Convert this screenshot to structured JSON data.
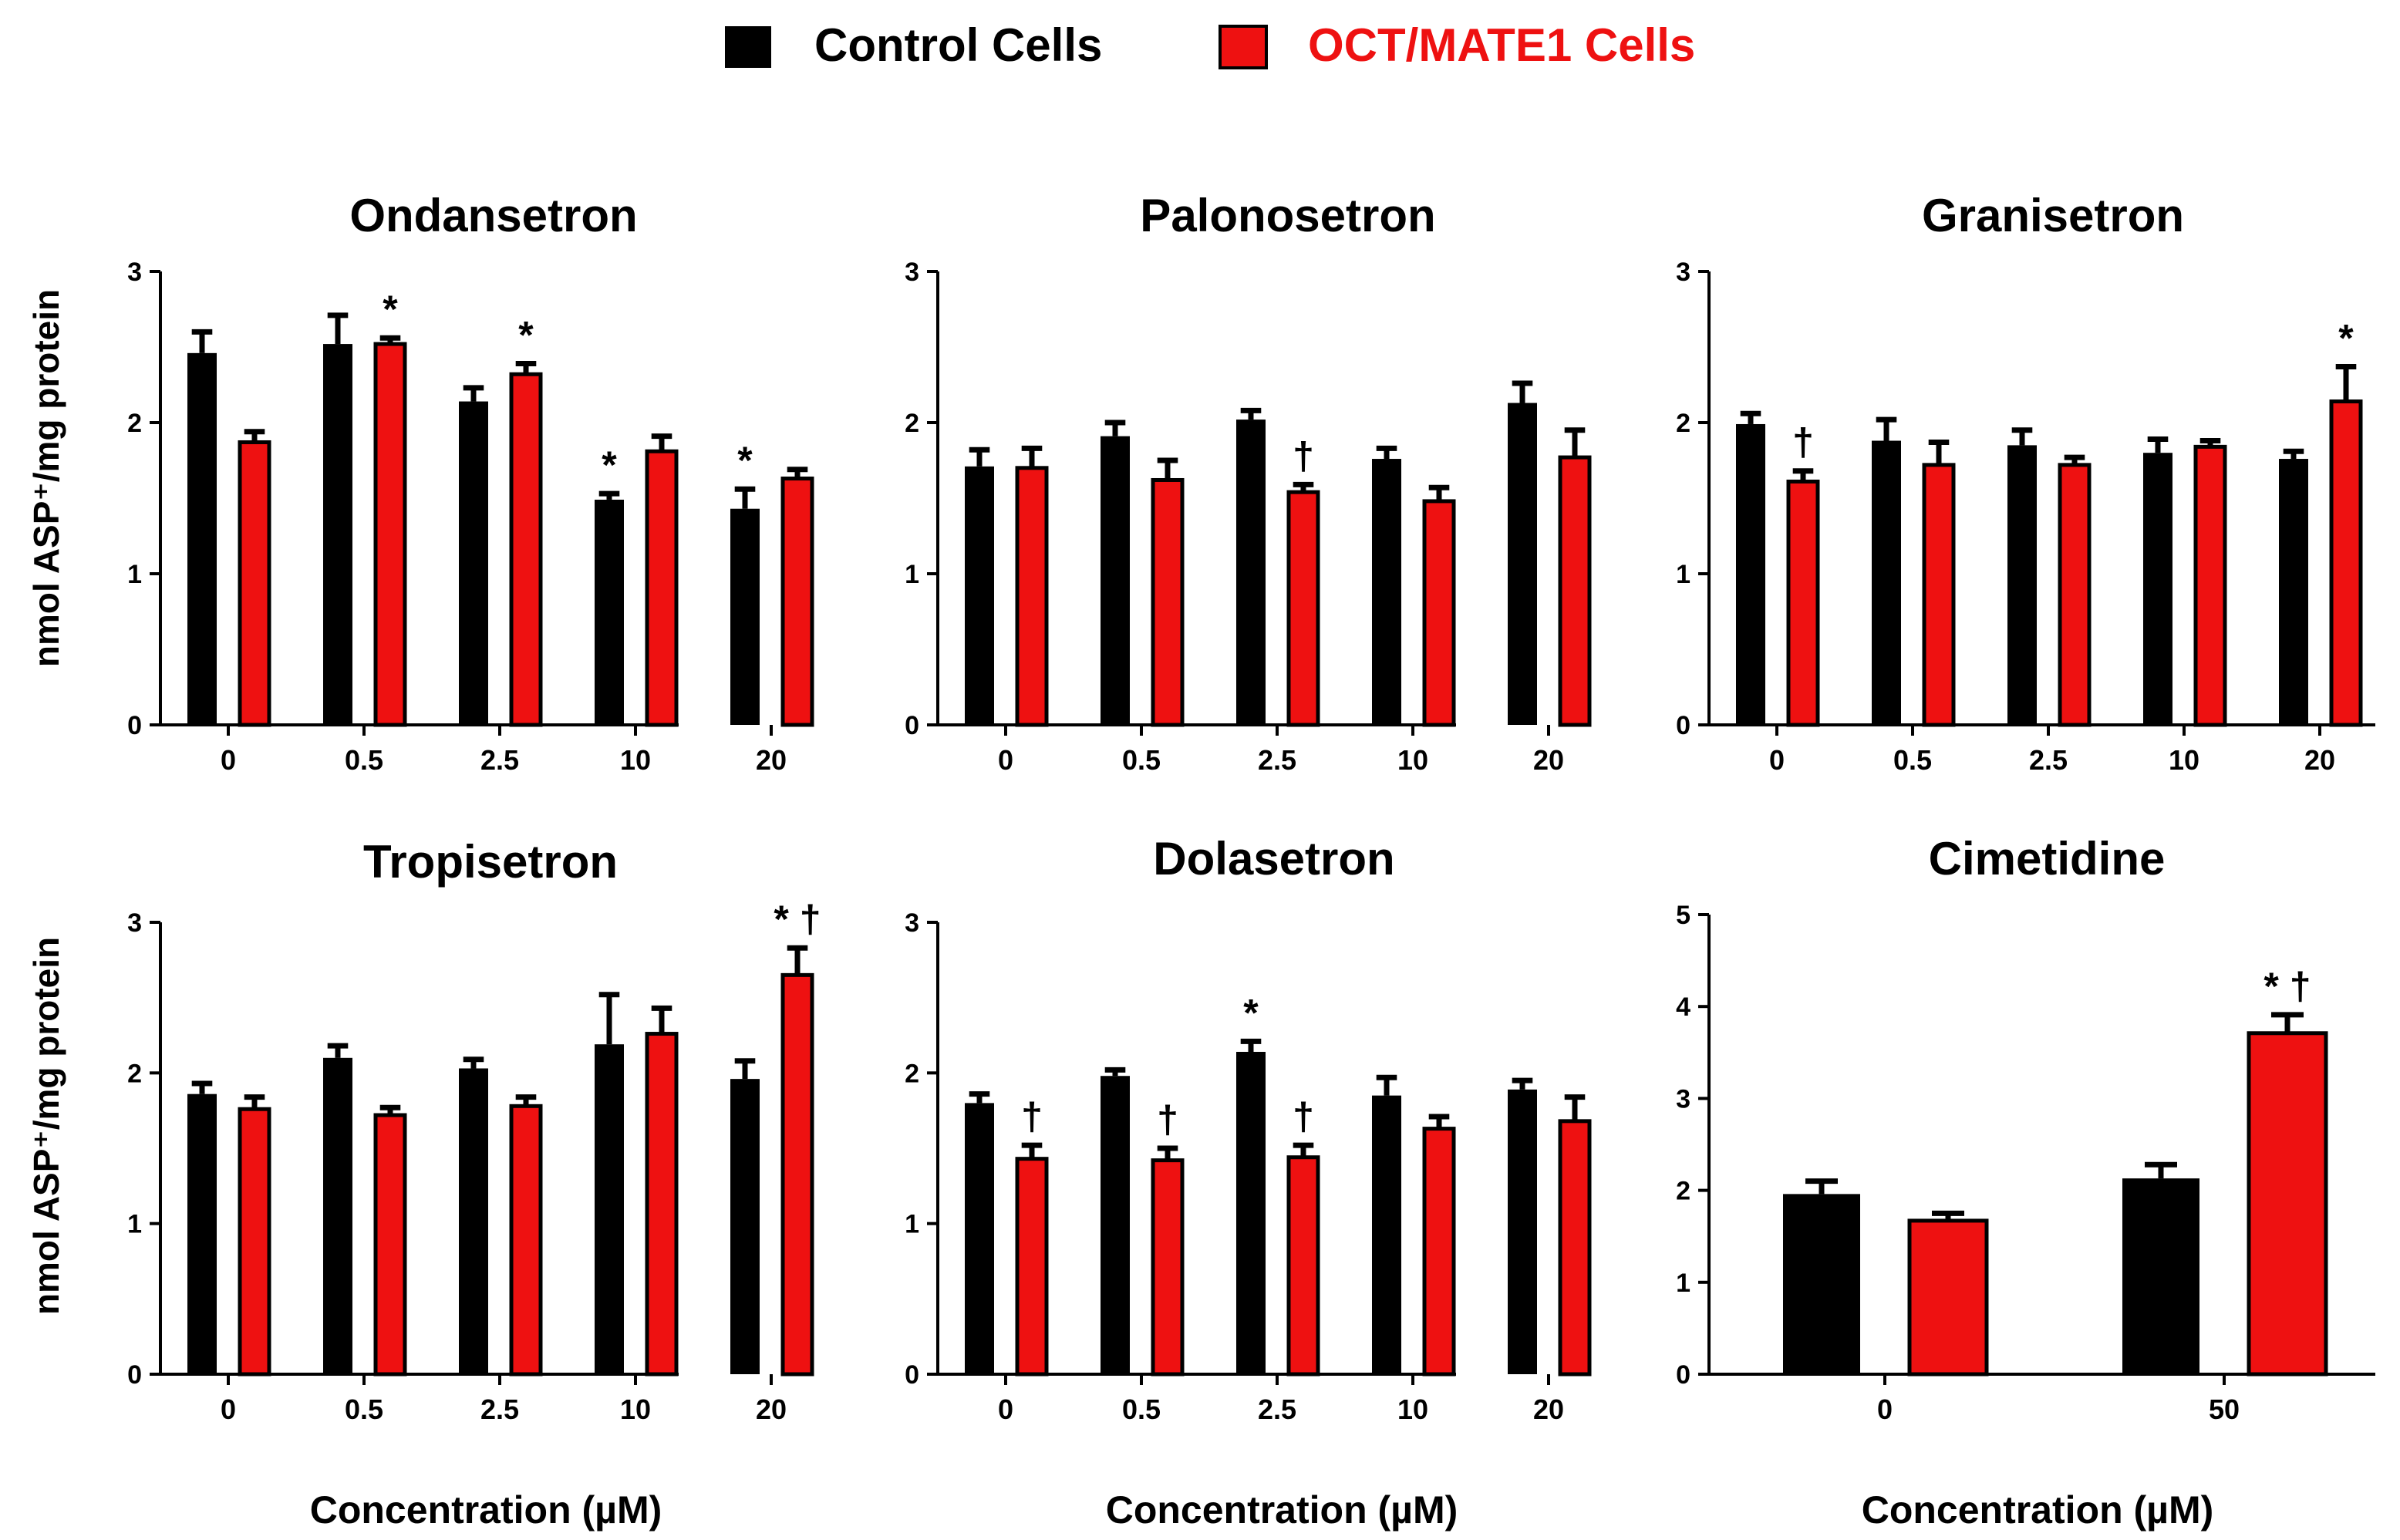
{
  "legend": {
    "items": [
      {
        "label": "Control Cells",
        "color": "#000000",
        "text_color": "#000000"
      },
      {
        "label": "OCT/MATE1 Cells",
        "color": "#ee1111",
        "text_color": "#ee1111"
      }
    ]
  },
  "axis_labels": {
    "y": "nmol ASP⁺/mg protein",
    "x": "Concentration (µM)"
  },
  "chart_data": [
    {
      "type": "bar",
      "title": "Ondansetron",
      "categories": [
        "0",
        "0.5",
        "2.5",
        "10",
        "20"
      ],
      "ylim": [
        0,
        3
      ],
      "yticks": [
        "0",
        "1",
        "2",
        "3"
      ],
      "series": [
        {
          "name": "Control Cells",
          "values": [
            2.46,
            2.52,
            2.14,
            1.49,
            1.43
          ],
          "errors": [
            0.14,
            0.19,
            0.09,
            0.04,
            0.13
          ]
        },
        {
          "name": "OCT/MATE1 Cells",
          "values": [
            1.87,
            2.52,
            2.32,
            1.81,
            1.63
          ],
          "errors": [
            0.07,
            0.04,
            0.07,
            0.1,
            0.06
          ]
        }
      ],
      "annotations": [
        {
          "series": 1,
          "index": 1,
          "text": "*"
        },
        {
          "series": 1,
          "index": 2,
          "text": "*"
        },
        {
          "series": 0,
          "index": 3,
          "text": "*"
        },
        {
          "series": 0,
          "index": 4,
          "text": "*"
        }
      ]
    },
    {
      "type": "bar",
      "title": "Palonosetron",
      "categories": [
        "0",
        "0.5",
        "2.5",
        "10",
        "20"
      ],
      "ylim": [
        0,
        3
      ],
      "yticks": [
        "0",
        "1",
        "2",
        "3"
      ],
      "series": [
        {
          "name": "Control Cells",
          "values": [
            1.71,
            1.91,
            2.02,
            1.76,
            2.13
          ],
          "errors": [
            0.11,
            0.09,
            0.06,
            0.07,
            0.13
          ]
        },
        {
          "name": "OCT/MATE1 Cells",
          "values": [
            1.7,
            1.62,
            1.54,
            1.48,
            1.77
          ],
          "errors": [
            0.13,
            0.13,
            0.05,
            0.09,
            0.18
          ]
        }
      ],
      "annotations": [
        {
          "series": 1,
          "index": 2,
          "text": "†"
        }
      ]
    },
    {
      "type": "bar",
      "title": "Granisetron",
      "categories": [
        "0",
        "0.5",
        "2.5",
        "10",
        "20"
      ],
      "ylim": [
        0,
        3
      ],
      "yticks": [
        "0",
        "1",
        "2",
        "3"
      ],
      "series": [
        {
          "name": "Control Cells",
          "values": [
            1.99,
            1.88,
            1.85,
            1.8,
            1.76
          ],
          "errors": [
            0.07,
            0.14,
            0.1,
            0.09,
            0.05
          ]
        },
        {
          "name": "OCT/MATE1 Cells",
          "values": [
            1.61,
            1.72,
            1.72,
            1.84,
            2.14
          ],
          "errors": [
            0.07,
            0.15,
            0.05,
            0.04,
            0.23
          ]
        }
      ],
      "annotations": [
        {
          "series": 1,
          "index": 0,
          "text": "†"
        },
        {
          "series": 1,
          "index": 4,
          "text": "*"
        }
      ]
    },
    {
      "type": "bar",
      "title": "Tropisetron",
      "categories": [
        "0",
        "0.5",
        "2.5",
        "10",
        "20"
      ],
      "ylim": [
        0,
        3
      ],
      "yticks": [
        "0",
        "1",
        "2",
        "3"
      ],
      "series": [
        {
          "name": "Control Cells",
          "values": [
            1.86,
            2.1,
            2.03,
            2.19,
            1.96
          ],
          "errors": [
            0.07,
            0.08,
            0.06,
            0.33,
            0.12
          ]
        },
        {
          "name": "OCT/MATE1 Cells",
          "values": [
            1.76,
            1.72,
            1.78,
            2.26,
            2.65
          ],
          "errors": [
            0.08,
            0.05,
            0.06,
            0.17,
            0.18
          ]
        }
      ],
      "annotations": [
        {
          "series": 1,
          "index": 4,
          "text": "* †"
        }
      ]
    },
    {
      "type": "bar",
      "title": "Dolasetron",
      "categories": [
        "0",
        "0.5",
        "2.5",
        "10",
        "20"
      ],
      "ylim": [
        0,
        3
      ],
      "yticks": [
        "0",
        "1",
        "2",
        "3"
      ],
      "series": [
        {
          "name": "Control Cells",
          "values": [
            1.8,
            1.98,
            2.14,
            1.85,
            1.89
          ],
          "errors": [
            0.06,
            0.04,
            0.07,
            0.12,
            0.06
          ]
        },
        {
          "name": "OCT/MATE1 Cells",
          "values": [
            1.43,
            1.42,
            1.44,
            1.63,
            1.68
          ],
          "errors": [
            0.09,
            0.08,
            0.08,
            0.08,
            0.16
          ]
        }
      ],
      "annotations": [
        {
          "series": 1,
          "index": 0,
          "text": "†"
        },
        {
          "series": 1,
          "index": 1,
          "text": "†"
        },
        {
          "series": 0,
          "index": 2,
          "text": "*"
        },
        {
          "series": 1,
          "index": 2,
          "text": "†"
        }
      ]
    },
    {
      "type": "bar",
      "title": "Cimetidine",
      "categories": [
        "0",
        "50"
      ],
      "ylim": [
        0,
        5
      ],
      "yticks": [
        "0",
        "1",
        "2",
        "3",
        "4",
        "5"
      ],
      "series": [
        {
          "name": "Control Cells",
          "values": [
            1.96,
            2.13
          ],
          "errors": [
            0.14,
            0.15
          ]
        },
        {
          "name": "OCT/MATE1 Cells",
          "values": [
            1.67,
            3.71
          ],
          "errors": [
            0.08,
            0.2
          ]
        }
      ],
      "annotations": [
        {
          "series": 1,
          "index": 1,
          "text": "* †"
        }
      ]
    }
  ]
}
